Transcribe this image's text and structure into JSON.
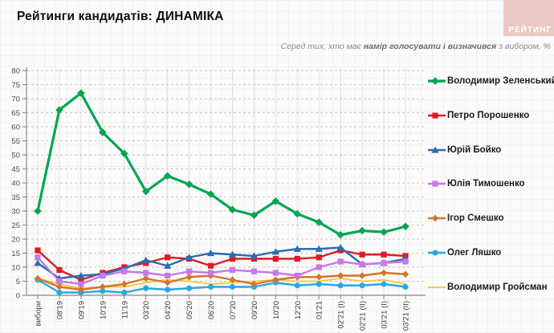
{
  "header": {
    "title": "Рейтинги кандидатів: ДИНАМІКА",
    "logo_text": "РЕЙТИНГ",
    "logo_bg_color": "#eac8c4"
  },
  "subtitle": {
    "prefix": "Серед тих, хто має ",
    "bold": "намір голосувати і визначився",
    "suffix": " з вибором, %"
  },
  "chart_data": {
    "type": "line",
    "title": "Рейтинги кандидатів: ДИНАМІКА",
    "subtitle": "Серед тих, хто має намір голосувати і визначився з вибором, %",
    "xlabel": "",
    "ylabel": "%",
    "ylim": [
      0,
      80
    ],
    "ytick_step": 5,
    "grid": true,
    "legend_position": "right",
    "categories": [
      "вибори",
      "08'19",
      "09'19",
      "10'19",
      "11'19",
      "03'20",
      "04'20",
      "05'20",
      "06'20",
      "07'20",
      "09'20",
      "10'20",
      "12'20",
      "01'21",
      "02'21 (I)",
      "02'21 (II)",
      "03'21 (I)",
      "03'21 (II)"
    ],
    "series": [
      {
        "name": "Володимир Зеленський",
        "color": "#00a651",
        "marker": "diamond",
        "line_width": 3.2,
        "values": [
          30,
          66,
          72,
          58,
          50.5,
          37,
          42.5,
          39.5,
          36,
          30.5,
          28.5,
          33.5,
          29,
          26,
          21.5,
          23,
          22.5,
          24.5
        ]
      },
      {
        "name": "Петро Порошенко",
        "color": "#e01b22",
        "marker": "square",
        "line_width": 2.4,
        "values": [
          16,
          9,
          5.5,
          8,
          10,
          11.5,
          13.5,
          13,
          10.5,
          13,
          13,
          13,
          13,
          13.5,
          16,
          14.5,
          14.5,
          14
        ]
      },
      {
        "name": "Юрій Бойко",
        "color": "#2b6cb3",
        "marker": "triangle",
        "line_width": 2.4,
        "values": [
          11.5,
          6,
          7,
          7.5,
          9.5,
          12.5,
          10.5,
          13.5,
          15,
          14.5,
          14,
          15.5,
          16.5,
          16.5,
          17,
          11,
          11.5,
          13
        ]
      },
      {
        "name": "Юлія Тимошенко",
        "color": "#c678e8",
        "marker": "square",
        "line_width": 2.4,
        "values": [
          13.5,
          5,
          4,
          7,
          8.5,
          8,
          7,
          8.5,
          8,
          9,
          8.5,
          8,
          7,
          10,
          12,
          11,
          11.5,
          12
        ]
      },
      {
        "name": "Ігор Смешко",
        "color": "#d3752c",
        "marker": "diamond",
        "line_width": 2.4,
        "values": [
          6,
          3,
          2,
          3,
          4,
          6,
          4.5,
          6.5,
          7,
          5.5,
          4,
          5.5,
          6.5,
          6.5,
          7,
          7,
          8,
          7.5
        ]
      },
      {
        "name": "Олег Ляшко",
        "color": "#29a8e0",
        "marker": "circle",
        "line_width": 2.4,
        "values": [
          5.5,
          1,
          1,
          1.5,
          1,
          2.5,
          2,
          2.5,
          3,
          3,
          3,
          4.5,
          3.5,
          4,
          3.5,
          3.5,
          4,
          3
        ]
      },
      {
        "name": "Володимир Гройсман",
        "color": "#ecc93d",
        "marker": "none",
        "line_width": 1.8,
        "values": [
          6,
          4,
          2.5,
          3,
          3,
          4.5,
          5.5,
          5,
          4,
          4.5,
          5,
          5.5,
          5,
          5,
          6,
          5,
          5.5,
          4
        ]
      }
    ],
    "draw_order": [
      6,
      5,
      4,
      1,
      2,
      3,
      0
    ]
  }
}
